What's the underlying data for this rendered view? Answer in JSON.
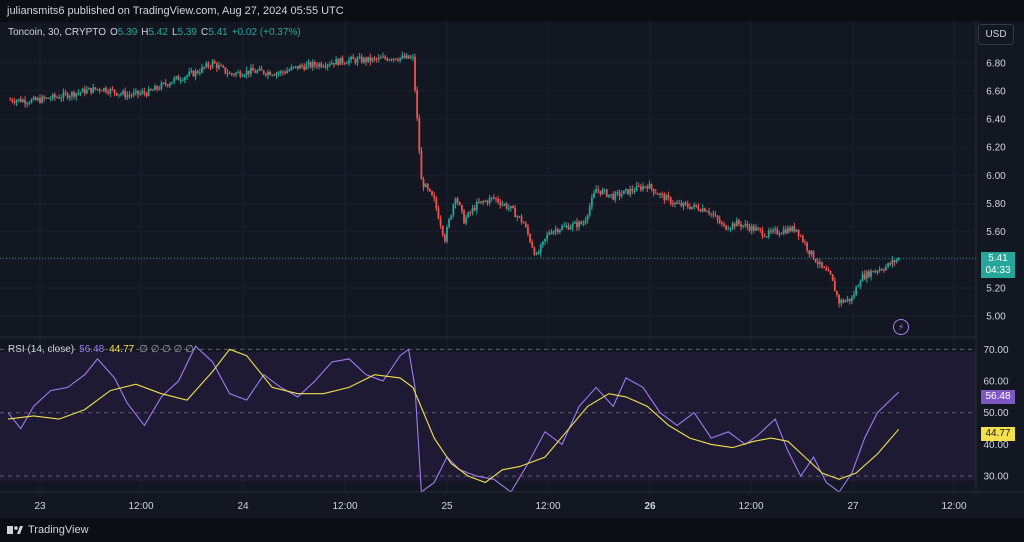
{
  "header": {
    "publisher_text": "juliansmits6 published on TradingView.com, Aug 27, 2024 05:55 UTC"
  },
  "legend": {
    "symbol": "Toncoin, 30, CRYPTO",
    "o_label": "O",
    "o_value": "5.39",
    "h_label": "H",
    "h_value": "5.42",
    "l_label": "L",
    "l_value": "5.39",
    "c_label": "C",
    "c_value": "5.41",
    "change": "+0.02 (+0.37%)"
  },
  "currency_button": "USD",
  "last_price": {
    "value": "5.41",
    "countdown": "04:33"
  },
  "rsi_legend": {
    "label": "RSI (14, close)",
    "rsi_value": "56.48",
    "ma_value": "44.77",
    "na_values": "∅ ∅ ∅ ∅ ∅"
  },
  "footer": {
    "brand": "TradingView"
  },
  "colors": {
    "up": "#26a69a",
    "down": "#ef5350",
    "rsi": "#9c7cf4",
    "rsi_ma": "#f4e04d",
    "background": "#131722"
  },
  "chart_data": [
    {
      "type": "candlestick",
      "title": "Toncoin, 30, CRYPTO",
      "ylim": [
        4.9,
        6.92
      ],
      "y_ticks": [
        5.0,
        5.2,
        5.4,
        5.6,
        5.8,
        6.0,
        6.2,
        6.4,
        6.6,
        6.8
      ],
      "y_tick_labels": [
        "5.00",
        "5.20",
        "5.40",
        "5.60",
        "5.80",
        "6.00",
        "6.20",
        "6.40",
        "6.60",
        "6.80"
      ],
      "x_labels": [
        "23",
        "12:00",
        "24",
        "12:00",
        "25",
        "12:00",
        "26",
        "12:00",
        "27",
        "12:00"
      ],
      "close_path": [
        [
          0,
          6.54
        ],
        [
          12,
          6.53
        ],
        [
          24,
          6.56
        ],
        [
          36,
          6.6
        ],
        [
          44,
          6.62
        ],
        [
          56,
          6.57
        ],
        [
          66,
          6.59
        ],
        [
          78,
          6.68
        ],
        [
          88,
          6.73
        ],
        [
          96,
          6.8
        ],
        [
          104,
          6.72
        ],
        [
          114,
          6.74
        ],
        [
          128,
          6.73
        ],
        [
          136,
          6.77
        ],
        [
          150,
          6.8
        ],
        [
          160,
          6.82
        ],
        [
          172,
          6.82
        ],
        [
          180,
          6.84
        ],
        [
          190,
          6.83
        ],
        [
          194,
          5.96
        ],
        [
          200,
          5.82
        ],
        [
          205,
          5.55
        ],
        [
          210,
          5.86
        ],
        [
          214,
          5.68
        ],
        [
          220,
          5.79
        ],
        [
          228,
          5.84
        ],
        [
          236,
          5.76
        ],
        [
          242,
          5.66
        ],
        [
          248,
          5.42
        ],
        [
          254,
          5.6
        ],
        [
          260,
          5.63
        ],
        [
          270,
          5.66
        ],
        [
          276,
          5.9
        ],
        [
          284,
          5.85
        ],
        [
          292,
          5.89
        ],
        [
          300,
          5.93
        ],
        [
          306,
          5.86
        ],
        [
          314,
          5.79
        ],
        [
          320,
          5.78
        ],
        [
          328,
          5.76
        ],
        [
          336,
          5.63
        ],
        [
          342,
          5.66
        ],
        [
          350,
          5.62
        ],
        [
          356,
          5.58
        ],
        [
          364,
          5.61
        ],
        [
          370,
          5.62
        ],
        [
          376,
          5.46
        ],
        [
          382,
          5.34
        ],
        [
          386,
          5.28
        ],
        [
          390,
          5.1
        ],
        [
          396,
          5.12
        ],
        [
          400,
          5.27
        ],
        [
          406,
          5.32
        ],
        [
          412,
          5.35
        ],
        [
          418,
          5.41
        ]
      ],
      "last_value": 5.41
    },
    {
      "type": "line",
      "title": "RSI (14, close)",
      "ylim": [
        25,
        72
      ],
      "y_ticks": [
        30,
        40,
        50,
        60,
        70
      ],
      "y_tick_labels": [
        "30.00",
        "40.00",
        "50.00",
        "60.00",
        "70.00"
      ],
      "bands": [
        30,
        50,
        70
      ],
      "series": [
        {
          "name": "RSI",
          "color": "#9c7cf4",
          "points": [
            [
              0,
              50
            ],
            [
              6,
              45
            ],
            [
              12,
              52
            ],
            [
              20,
              57
            ],
            [
              28,
              58
            ],
            [
              36,
              62
            ],
            [
              42,
              67
            ],
            [
              50,
              61
            ],
            [
              56,
              53
            ],
            [
              64,
              46
            ],
            [
              72,
              55
            ],
            [
              80,
              60
            ],
            [
              88,
              71
            ],
            [
              96,
              66
            ],
            [
              104,
              56
            ],
            [
              112,
              54
            ],
            [
              120,
              62
            ],
            [
              128,
              58
            ],
            [
              136,
              55
            ],
            [
              144,
              60
            ],
            [
              152,
              66
            ],
            [
              160,
              67
            ],
            [
              168,
              62
            ],
            [
              176,
              60
            ],
            [
              184,
              68
            ],
            [
              188,
              70
            ],
            [
              191,
              58
            ],
            [
              194,
              22
            ],
            [
              200,
              28
            ],
            [
              206,
              36
            ],
            [
              212,
              32
            ],
            [
              220,
              30
            ],
            [
              228,
              29
            ],
            [
              236,
              22
            ],
            [
              244,
              34
            ],
            [
              252,
              44
            ],
            [
              260,
              40
            ],
            [
              268,
              52
            ],
            [
              276,
              58
            ],
            [
              284,
              52
            ],
            [
              290,
              61
            ],
            [
              298,
              58
            ],
            [
              306,
              50
            ],
            [
              314,
              46
            ],
            [
              322,
              50
            ],
            [
              330,
              42
            ],
            [
              338,
              44
            ],
            [
              346,
              40
            ],
            [
              352,
              43
            ],
            [
              360,
              48
            ],
            [
              366,
              38
            ],
            [
              372,
              30
            ],
            [
              378,
              36
            ],
            [
              384,
              28
            ],
            [
              390,
              25
            ],
            [
              396,
              31
            ],
            [
              402,
              42
            ],
            [
              408,
              50
            ],
            [
              414,
              54
            ],
            [
              418,
              56.48
            ]
          ],
          "last_value": 56.48
        },
        {
          "name": "RSI-based MA",
          "color": "#f4e04d",
          "points": [
            [
              0,
              48
            ],
            [
              12,
              49
            ],
            [
              24,
              48
            ],
            [
              36,
              51
            ],
            [
              48,
              57
            ],
            [
              60,
              59
            ],
            [
              72,
              56
            ],
            [
              84,
              54
            ],
            [
              96,
              63
            ],
            [
              104,
              70
            ],
            [
              112,
              68
            ],
            [
              124,
              58
            ],
            [
              136,
              56
            ],
            [
              148,
              56
            ],
            [
              160,
              58
            ],
            [
              172,
              62
            ],
            [
              184,
              61
            ],
            [
              190,
              58
            ],
            [
              200,
              42
            ],
            [
              208,
              34
            ],
            [
              216,
              30
            ],
            [
              224,
              28
            ],
            [
              232,
              32
            ],
            [
              240,
              33
            ],
            [
              252,
              36
            ],
            [
              262,
              44
            ],
            [
              272,
              52
            ],
            [
              282,
              56
            ],
            [
              290,
              55
            ],
            [
              300,
              52
            ],
            [
              310,
              46
            ],
            [
              320,
              42
            ],
            [
              330,
              40
            ],
            [
              340,
              39
            ],
            [
              350,
              41
            ],
            [
              358,
              42
            ],
            [
              366,
              41
            ],
            [
              374,
              36
            ],
            [
              382,
              31
            ],
            [
              390,
              29
            ],
            [
              398,
              31
            ],
            [
              408,
              37
            ],
            [
              418,
              44.77
            ]
          ],
          "last_value": 44.77
        }
      ]
    }
  ]
}
